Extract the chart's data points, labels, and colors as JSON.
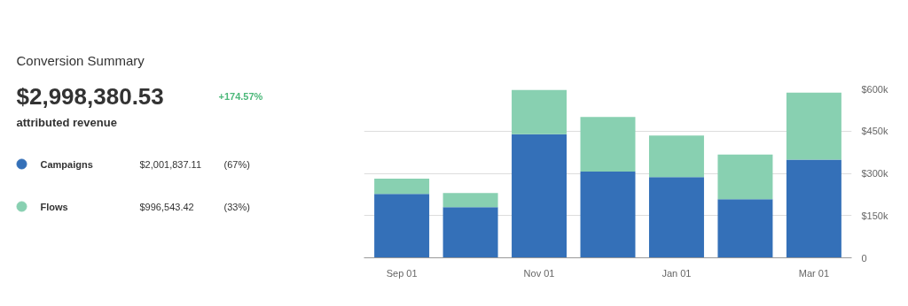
{
  "chart_data": {
    "type": "bar",
    "title": "Conversion Summary",
    "categories": [
      "Sep 01",
      null,
      "Nov 01",
      null,
      "Jan 01",
      null,
      "Mar 01"
    ],
    "series": [
      {
        "name": "Campaigns",
        "color": "#3470b8",
        "values": [
          227000,
          180000,
          439000,
          306000,
          287000,
          208000,
          349000
        ]
      },
      {
        "name": "Flows",
        "color": "#88d0b1",
        "values": [
          54000,
          50000,
          157000,
          194000,
          147000,
          159000,
          238000
        ]
      }
    ],
    "stacked": true,
    "ylim": [
      0,
      600000
    ],
    "yticks": [
      0,
      {
        "value": 150000,
        "label": "$150k"
      },
      {
        "value": 300000,
        "label": "$300k"
      },
      {
        "value": 450000,
        "label": "$450k"
      },
      {
        "value": 600000,
        "label": "$600k"
      }
    ],
    "grid": "y",
    "legend": "left",
    "annotations": [
      "$2,998,380.53",
      "+174.57%",
      "attributed revenue",
      "$2,001,837.11",
      "(67%)",
      "$996,543.42",
      "(33%)"
    ]
  }
}
